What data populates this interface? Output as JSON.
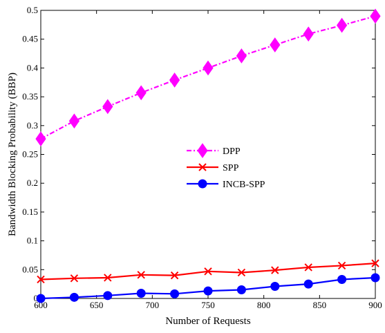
{
  "chart_data": {
    "type": "line",
    "title": "",
    "xlabel": "Number of Requests",
    "ylabel": "Bandwidth Blocking Probability (BBP)",
    "xlim": [
      600,
      900
    ],
    "ylim": [
      0,
      0.5
    ],
    "x": [
      600,
      630,
      660,
      690,
      720,
      750,
      780,
      810,
      840,
      870,
      900
    ],
    "x_ticks": [
      600,
      650,
      700,
      750,
      800,
      850,
      900
    ],
    "y_ticks": [
      0,
      0.05,
      0.1,
      0.15,
      0.2,
      0.25,
      0.3,
      0.35,
      0.4,
      0.45,
      0.5
    ],
    "y_tick_labels": [
      "0",
      "0.05",
      "0.1",
      "0.15",
      "0.2",
      "0.25",
      "0.3",
      "0.35",
      "0.4",
      "0.45",
      "0.5"
    ],
    "grid": false,
    "legend_position": "center-right",
    "series": [
      {
        "name": "DPP",
        "color": "#ff00ff",
        "line_style": "dash-dot",
        "marker": "diamond",
        "values": [
          0.277,
          0.308,
          0.333,
          0.357,
          0.379,
          0.4,
          0.421,
          0.44,
          0.459,
          0.474,
          0.49
        ]
      },
      {
        "name": "SPP",
        "color": "#ff0000",
        "line_style": "solid",
        "marker": "cross",
        "values": [
          0.033,
          0.035,
          0.036,
          0.041,
          0.04,
          0.047,
          0.045,
          0.049,
          0.054,
          0.057,
          0.061
        ]
      },
      {
        "name": "INCB-SPP",
        "color": "#0000ff",
        "line_style": "solid",
        "marker": "circle",
        "values": [
          0.0,
          0.002,
          0.005,
          0.009,
          0.008,
          0.013,
          0.015,
          0.021,
          0.025,
          0.033,
          0.036
        ]
      }
    ]
  }
}
